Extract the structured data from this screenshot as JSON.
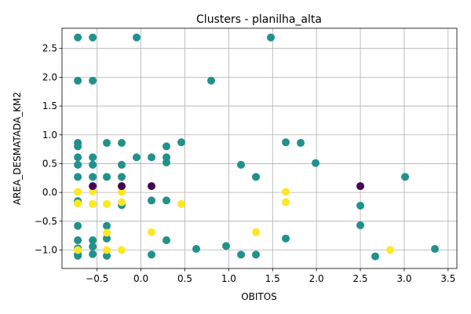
{
  "chart_data": {
    "type": "scatter",
    "title": "Clusters - planilha_alta",
    "xlabel": "OBITOS",
    "ylabel": "AREA_DESMATADA_KM2",
    "xlim": [
      -0.9,
      3.6
    ],
    "ylim": [
      -1.32,
      2.85
    ],
    "x_ticks": [
      -0.5,
      0.0,
      0.5,
      1.0,
      1.5,
      2.0,
      2.5,
      3.0,
      3.5
    ],
    "x_tick_labels": [
      "−0.5",
      "0.0",
      "0.5",
      "1.0",
      "1.5",
      "2.0",
      "2.5",
      "3.0",
      "3.5"
    ],
    "y_ticks": [
      -1.0,
      -0.5,
      0.0,
      0.5,
      1.0,
      1.5,
      2.0,
      2.5
    ],
    "y_tick_labels": [
      "−1.0",
      "−0.5",
      "0.0",
      "0.5",
      "1.0",
      "1.5",
      "2.0",
      "2.5"
    ],
    "grid": true,
    "legend": "none",
    "series": [
      {
        "color": "#21918c",
        "points": [
          [
            -0.72,
            2.69
          ],
          [
            -0.55,
            2.69
          ],
          [
            -0.05,
            2.69
          ],
          [
            1.48,
            2.69
          ],
          [
            -0.72,
            1.94
          ],
          [
            -0.55,
            1.94
          ],
          [
            0.8,
            1.94
          ],
          [
            -0.72,
            0.86
          ],
          [
            -0.72,
            0.8
          ],
          [
            -0.39,
            0.86
          ],
          [
            -0.22,
            0.86
          ],
          [
            0.46,
            0.87
          ],
          [
            0.29,
            0.8
          ],
          [
            1.65,
            0.87
          ],
          [
            1.82,
            0.86
          ],
          [
            -0.72,
            0.61
          ],
          [
            -0.55,
            0.61
          ],
          [
            -0.05,
            0.61
          ],
          [
            0.12,
            0.61
          ],
          [
            0.29,
            0.61
          ],
          [
            -0.72,
            0.48
          ],
          [
            -0.55,
            0.48
          ],
          [
            -0.22,
            0.48
          ],
          [
            0.29,
            0.52
          ],
          [
            1.14,
            0.48
          ],
          [
            1.99,
            0.51
          ],
          [
            -0.72,
            0.27
          ],
          [
            -0.55,
            0.27
          ],
          [
            -0.39,
            0.27
          ],
          [
            -0.22,
            0.27
          ],
          [
            1.31,
            0.27
          ],
          [
            3.01,
            0.27
          ],
          [
            -0.72,
            -0.15
          ],
          [
            -0.72,
            -0.18
          ],
          [
            -0.22,
            -0.22
          ],
          [
            0.12,
            -0.14
          ],
          [
            0.29,
            -0.14
          ],
          [
            2.5,
            -0.23
          ],
          [
            -0.72,
            -0.58
          ],
          [
            -0.39,
            -0.58
          ],
          [
            2.5,
            -0.57
          ],
          [
            -0.72,
            -0.83
          ],
          [
            -0.55,
            -0.83
          ],
          [
            -0.39,
            -0.8
          ],
          [
            0.29,
            -0.83
          ],
          [
            1.65,
            -0.8
          ],
          [
            -0.72,
            -0.97
          ],
          [
            -0.55,
            -0.94
          ],
          [
            0.63,
            -0.98
          ],
          [
            0.97,
            -0.93
          ],
          [
            3.35,
            -0.98
          ],
          [
            -0.72,
            -1.1
          ],
          [
            -0.72,
            -1.07
          ],
          [
            -0.55,
            -1.07
          ],
          [
            -0.39,
            -1.1
          ],
          [
            0.12,
            -1.08
          ],
          [
            1.14,
            -1.08
          ],
          [
            1.31,
            -1.08
          ],
          [
            2.67,
            -1.11
          ]
        ]
      },
      {
        "color": "#fde725",
        "points": [
          [
            -0.72,
            0.01
          ],
          [
            -0.55,
            0.02
          ],
          [
            -0.22,
            0.01
          ],
          [
            1.65,
            0.01
          ],
          [
            -0.72,
            -0.19
          ],
          [
            -0.55,
            -0.2
          ],
          [
            -0.39,
            -0.2
          ],
          [
            -0.22,
            -0.17
          ],
          [
            0.46,
            -0.2
          ],
          [
            1.65,
            -0.17
          ],
          [
            0.12,
            -0.69
          ],
          [
            1.31,
            -0.69
          ],
          [
            -0.39,
            -0.7
          ],
          [
            -0.72,
            -1.0
          ],
          [
            -0.39,
            -1.0
          ],
          [
            -0.22,
            -1.0
          ],
          [
            2.84,
            -1.0
          ]
        ]
      },
      {
        "color": "#440154",
        "points": [
          [
            -0.55,
            0.11
          ],
          [
            -0.22,
            0.11
          ],
          [
            0.12,
            0.11
          ],
          [
            2.5,
            0.11
          ]
        ]
      }
    ]
  }
}
